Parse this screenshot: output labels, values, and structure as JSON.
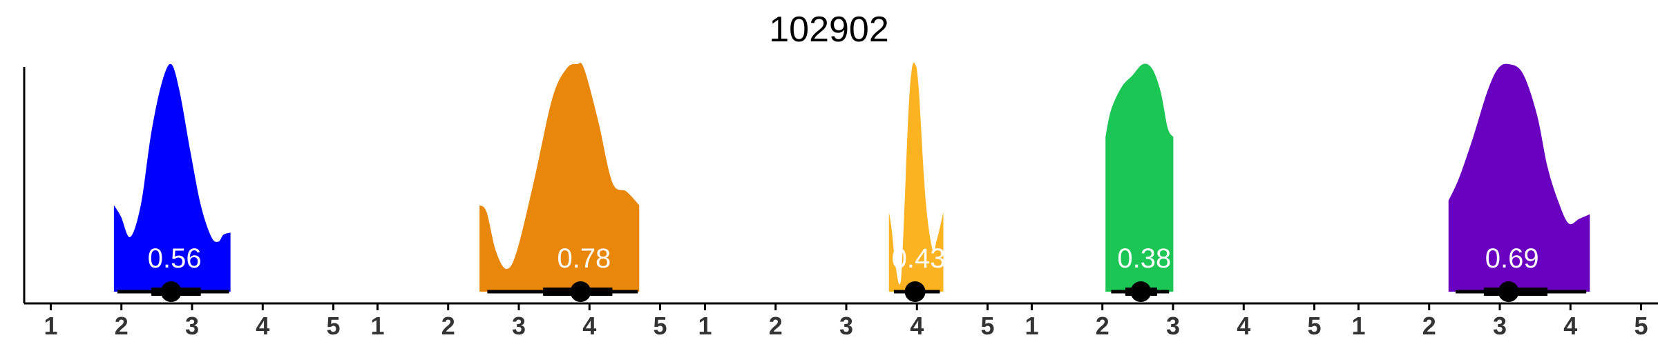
{
  "title": "102902",
  "chart_data": [
    {
      "type": "area",
      "color": "#0000FF",
      "label": "0.56",
      "density": {
        "range": [
          2.07,
          3.72
        ],
        "x": [
          2.07,
          2.17,
          2.3,
          2.45,
          2.6,
          2.75,
          2.88,
          3.0,
          3.15,
          3.3,
          3.45,
          3.55,
          3.62,
          3.72
        ],
        "y": [
          0.38,
          0.33,
          0.24,
          0.38,
          0.7,
          0.92,
          1.0,
          0.88,
          0.62,
          0.38,
          0.24,
          0.22,
          0.25,
          0.26
        ]
      },
      "interval": {
        "outer": [
          2.12,
          3.7
        ],
        "inner": [
          2.6,
          3.3
        ],
        "point": 2.88
      }
    },
    {
      "type": "area",
      "color": "#E8870A",
      "label": "0.78",
      "density": {
        "range": [
          2.62,
          4.88
        ],
        "x": [
          2.62,
          2.72,
          2.85,
          3.0,
          3.15,
          3.4,
          3.65,
          3.85,
          4.0,
          4.1,
          4.3,
          4.5,
          4.7,
          4.88
        ],
        "y": [
          0.38,
          0.35,
          0.18,
          0.1,
          0.18,
          0.5,
          0.85,
          0.98,
          1.0,
          0.98,
          0.75,
          0.48,
          0.44,
          0.38
        ]
      },
      "interval": {
        "outer": [
          2.73,
          4.86
        ],
        "inner": [
          3.52,
          4.5
        ],
        "point": 4.05
      }
    },
    {
      "type": "area",
      "color": "#FCB322",
      "label": "0.43",
      "density": {
        "range": [
          3.78,
          4.55
        ],
        "x": [
          3.78,
          3.82,
          3.88,
          3.95,
          4.05,
          4.1,
          4.15,
          4.2,
          4.3,
          4.4,
          4.45,
          4.5,
          4.55
        ],
        "y": [
          0.35,
          0.27,
          0.1,
          0.05,
          0.75,
          0.97,
          1.0,
          0.9,
          0.4,
          0.18,
          0.22,
          0.28,
          0.35
        ]
      },
      "interval": {
        "outer": [
          3.85,
          4.5
        ],
        "inner": [
          4.05,
          4.25
        ],
        "point": 4.15
      }
    },
    {
      "type": "area",
      "color": "#1BC655",
      "label": "0.38",
      "density": {
        "range": [
          2.22,
          3.18
        ],
        "x": [
          2.22,
          2.3,
          2.45,
          2.6,
          2.75,
          2.88,
          3.0,
          3.1,
          3.18
        ],
        "y": [
          0.68,
          0.8,
          0.9,
          0.95,
          1.0,
          0.98,
          0.88,
          0.72,
          0.68
        ]
      },
      "interval": {
        "outer": [
          2.3,
          3.12
        ],
        "inner": [
          2.5,
          2.95
        ],
        "point": 2.72
      }
    },
    {
      "type": "area",
      "color": "#6A00C0",
      "label": "0.69",
      "density": {
        "range": [
          2.45,
          4.45
        ],
        "x": [
          2.45,
          2.6,
          2.8,
          3.0,
          3.15,
          3.3,
          3.5,
          3.7,
          3.85,
          4.0,
          4.15,
          4.3,
          4.45
        ],
        "y": [
          0.4,
          0.5,
          0.68,
          0.88,
          0.98,
          1.0,
          0.96,
          0.78,
          0.55,
          0.4,
          0.3,
          0.32,
          0.34
        ]
      },
      "interval": {
        "outer": [
          2.55,
          4.4
        ],
        "inner": [
          2.95,
          3.85
        ],
        "point": 3.3
      }
    }
  ],
  "axis": {
    "xlim": [
      0.8,
      5.2
    ],
    "ticks": [
      1,
      2,
      3,
      4,
      5
    ],
    "tick_labels": [
      "1",
      "2",
      "3",
      "4",
      "5"
    ]
  }
}
